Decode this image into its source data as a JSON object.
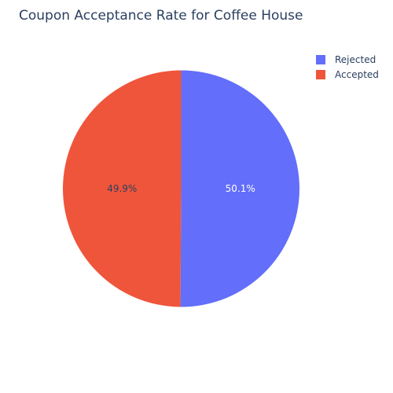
{
  "chart_data": {
    "type": "pie",
    "title": "Coupon Acceptance Rate for Coffee House",
    "labels": [
      "Rejected",
      "Accepted"
    ],
    "values": [
      50.1,
      49.9
    ],
    "text_labels": [
      "50.1%",
      "49.9%"
    ],
    "colors": [
      "#636efa",
      "#ef553b"
    ],
    "text_colors": [
      "#ffffff",
      "#2a3f5f"
    ],
    "direction": "clockwise",
    "start_angle_deg": 0,
    "legend_position": "top-right"
  }
}
